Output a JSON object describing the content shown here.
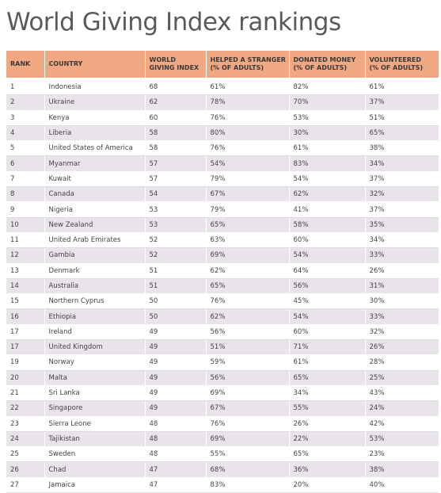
{
  "title": "World Giving Index rankings",
  "columns": {
    "rank": "RANK",
    "country": "COUNTRY",
    "wgi_line1": "WORLD",
    "wgi_line2": "GIVING INDEX",
    "helped_line1": "HELPED A STRANGER",
    "helped_line2": "(% OF ADULTS)",
    "donated_line1": "DONATED MONEY",
    "donated_line2": "(% OF ADULTS)",
    "volunteered_line1": "VOLUNTEERED",
    "volunteered_line2": "(% OF ADULTS)"
  },
  "colors": {
    "header_bg": "#f0a882",
    "stripe_bg": "#e8e4ea"
  },
  "rows": [
    {
      "rank": "1",
      "country": "Indonesia",
      "wgi": "68",
      "helped": "61%",
      "donated": "82%",
      "volunteered": "61%"
    },
    {
      "rank": "2",
      "country": "Ukraine",
      "wgi": "62",
      "helped": "78%",
      "donated": "70%",
      "volunteered": "37%"
    },
    {
      "rank": "3",
      "country": "Kenya",
      "wgi": "60",
      "helped": "76%",
      "donated": "53%",
      "volunteered": "51%"
    },
    {
      "rank": "4",
      "country": "Liberia",
      "wgi": "58",
      "helped": "80%",
      "donated": "30%",
      "volunteered": "65%"
    },
    {
      "rank": "5",
      "country": "United States of America",
      "wgi": "58",
      "helped": "76%",
      "donated": "61%",
      "volunteered": "38%"
    },
    {
      "rank": "6",
      "country": "Myanmar",
      "wgi": "57",
      "helped": "54%",
      "donated": "83%",
      "volunteered": "34%"
    },
    {
      "rank": "7",
      "country": "Kuwait",
      "wgi": "57",
      "helped": "79%",
      "donated": "54%",
      "volunteered": "37%"
    },
    {
      "rank": "8",
      "country": "Canada",
      "wgi": "54",
      "helped": "67%",
      "donated": "62%",
      "volunteered": "32%"
    },
    {
      "rank": "9",
      "country": "Nigeria",
      "wgi": "53",
      "helped": "79%",
      "donated": "41%",
      "volunteered": "37%"
    },
    {
      "rank": "10",
      "country": "New Zealand",
      "wgi": "53",
      "helped": "65%",
      "donated": "58%",
      "volunteered": "35%"
    },
    {
      "rank": "11",
      "country": "United Arab Emirates",
      "wgi": "52",
      "helped": "63%",
      "donated": "60%",
      "volunteered": "34%"
    },
    {
      "rank": "12",
      "country": "Gambia",
      "wgi": "52",
      "helped": "69%",
      "donated": "54%",
      "volunteered": "33%"
    },
    {
      "rank": "13",
      "country": "Denmark",
      "wgi": "51",
      "helped": "62%",
      "donated": "64%",
      "volunteered": "26%"
    },
    {
      "rank": "14",
      "country": "Australia",
      "wgi": "51",
      "helped": "65%",
      "donated": "56%",
      "volunteered": "31%"
    },
    {
      "rank": "15",
      "country": "Northern Cyprus",
      "wgi": "50",
      "helped": "76%",
      "donated": "45%",
      "volunteered": "30%"
    },
    {
      "rank": "16",
      "country": "Ethiopia",
      "wgi": "50",
      "helped": "62%",
      "donated": "54%",
      "volunteered": "33%"
    },
    {
      "rank": "17",
      "country": "Ireland",
      "wgi": "49",
      "helped": "56%",
      "donated": "60%",
      "volunteered": "32%"
    },
    {
      "rank": "17",
      "country": "United Kingdom",
      "wgi": "49",
      "helped": "51%",
      "donated": "71%",
      "volunteered": "26%"
    },
    {
      "rank": "19",
      "country": "Norway",
      "wgi": "49",
      "helped": "59%",
      "donated": "61%",
      "volunteered": "28%"
    },
    {
      "rank": "20",
      "country": "Malta",
      "wgi": "49",
      "helped": "56%",
      "donated": "65%",
      "volunteered": "25%"
    },
    {
      "rank": "21",
      "country": "Sri Lanka",
      "wgi": "49",
      "helped": "69%",
      "donated": "34%",
      "volunteered": "43%"
    },
    {
      "rank": "22",
      "country": "Singapore",
      "wgi": "49",
      "helped": "67%",
      "donated": "55%",
      "volunteered": "24%"
    },
    {
      "rank": "23",
      "country": "Sierra Leone",
      "wgi": "48",
      "helped": "76%",
      "donated": "26%",
      "volunteered": "42%"
    },
    {
      "rank": "24",
      "country": "Tajikistan",
      "wgi": "48",
      "helped": "69%",
      "donated": "22%",
      "volunteered": "53%"
    },
    {
      "rank": "25",
      "country": "Sweden",
      "wgi": "48",
      "helped": "55%",
      "donated": "65%",
      "volunteered": "23%"
    },
    {
      "rank": "26",
      "country": "Chad",
      "wgi": "47",
      "helped": "68%",
      "donated": "36%",
      "volunteered": "38%"
    },
    {
      "rank": "27",
      "country": "Jamaica",
      "wgi": "47",
      "helped": "83%",
      "donated": "20%",
      "volunteered": "40%"
    }
  ]
}
